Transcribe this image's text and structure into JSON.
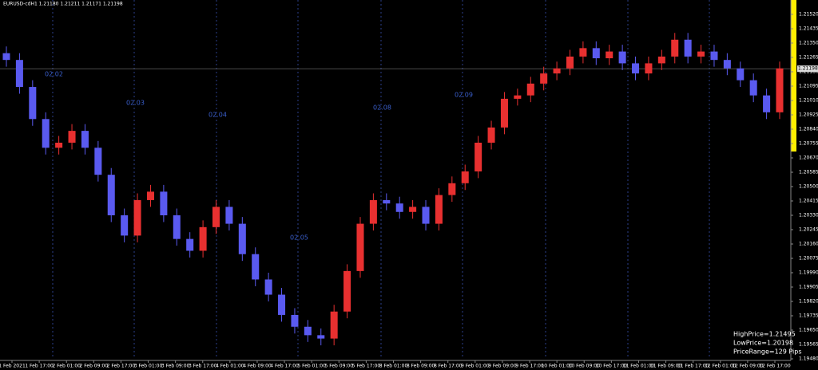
{
  "chart_data": {
    "type": "candlestick",
    "title": "EURUSD-cdH1  1.21180 1.21211 1.21171 1.21198",
    "candles": {
      "open": [
        1.2129,
        1.2125,
        1.2109,
        1.209,
        1.2073,
        1.2076,
        1.2083,
        1.2073,
        1.2057,
        1.2033,
        1.2021,
        1.2042,
        1.2047,
        1.2033,
        1.2019,
        1.2012,
        1.2026,
        1.2038,
        1.2028,
        1.201,
        1.1995,
        1.1986,
        1.1974,
        1.1967,
        1.1962,
        1.196,
        1.1976,
        1.2,
        1.2028,
        1.2042,
        1.204,
        1.2035,
        1.2038,
        1.2028,
        1.2045,
        1.2052,
        1.2059,
        1.2076,
        1.2085,
        1.2102,
        1.2104,
        1.2111,
        1.2117,
        1.212,
        1.2127,
        1.2132,
        1.2126,
        1.213,
        1.2123,
        1.2117,
        1.2123,
        1.2127,
        1.2137,
        1.2127,
        1.213,
        1.2125,
        1.212,
        1.2113,
        1.2104,
        1.2094
      ],
      "high": [
        1.2133,
        1.2129,
        1.2113,
        1.2094,
        1.208,
        1.2087,
        1.2087,
        1.2077,
        1.2061,
        1.2037,
        1.2046,
        1.2051,
        1.2051,
        1.2037,
        1.2023,
        1.203,
        1.2042,
        1.2042,
        1.2032,
        1.2014,
        1.1999,
        1.199,
        1.1978,
        1.1971,
        1.1966,
        1.198,
        1.2004,
        1.2032,
        1.2046,
        1.2046,
        1.2044,
        1.2042,
        1.2042,
        1.2049,
        1.2056,
        1.2063,
        1.208,
        1.2089,
        1.2106,
        1.2108,
        1.2115,
        1.2121,
        1.2124,
        1.2131,
        1.2136,
        1.2136,
        1.2134,
        1.2134,
        1.2127,
        1.2127,
        1.2131,
        1.2141,
        1.2141,
        1.2134,
        1.2134,
        1.2129,
        1.2124,
        1.2117,
        1.2108,
        1.2124
      ],
      "low": [
        1.2121,
        1.2105,
        1.2086,
        1.2069,
        1.2069,
        1.2072,
        1.2069,
        1.2053,
        1.2029,
        1.2017,
        1.2017,
        1.2038,
        1.2029,
        1.2015,
        1.2008,
        1.2008,
        1.2022,
        1.2024,
        1.2006,
        1.1991,
        1.1982,
        1.197,
        1.1963,
        1.1958,
        1.1956,
        1.1956,
        1.1972,
        1.1996,
        1.2024,
        1.2036,
        1.2031,
        1.2031,
        1.2024,
        1.2024,
        1.2041,
        1.2048,
        1.2055,
        1.2072,
        1.2081,
        1.2098,
        1.21,
        1.2107,
        1.2113,
        1.2116,
        1.2123,
        1.2122,
        1.2122,
        1.2119,
        1.2113,
        1.2113,
        1.2119,
        1.2123,
        1.2123,
        1.2123,
        1.2121,
        1.2116,
        1.2109,
        1.21,
        1.209,
        1.209
      ],
      "close": [
        1.2125,
        1.2109,
        1.209,
        1.2073,
        1.2076,
        1.2083,
        1.2073,
        1.2057,
        1.2033,
        1.2021,
        1.2042,
        1.2047,
        1.2033,
        1.2019,
        1.2012,
        1.2026,
        1.2038,
        1.2028,
        1.201,
        1.1995,
        1.1986,
        1.1974,
        1.1967,
        1.1962,
        1.196,
        1.1976,
        1.2,
        1.2028,
        1.2042,
        1.204,
        1.2035,
        1.2038,
        1.2028,
        1.2045,
        1.2052,
        1.2059,
        1.2076,
        1.2085,
        1.2102,
        1.2104,
        1.2111,
        1.2117,
        1.212,
        1.2127,
        1.2132,
        1.2126,
        1.213,
        1.2123,
        1.2117,
        1.2123,
        1.2127,
        1.2137,
        1.2127,
        1.213,
        1.2125,
        1.212,
        1.2113,
        1.2104,
        1.2094,
        1.212
      ]
    },
    "up_color": "#e83030",
    "down_color": "#5a5af0",
    "current_price": 1.21198,
    "ylim": [
      1.1948,
      1.21605
    ],
    "yticks": [
      {
        "value": 1.1948,
        "label": "1.19480"
      },
      1.19565,
      {
        "value": 1.1965,
        "label": "1.19650"
      },
      1.19735,
      {
        "value": 1.1982,
        "label": "1.19820"
      },
      1.19905,
      {
        "value": 1.1999,
        "label": "1.19990"
      },
      1.20075,
      {
        "value": 1.2016,
        "label": "1.20160"
      },
      1.20245,
      {
        "value": 1.2033,
        "label": "1.20330"
      },
      1.20415,
      {
        "value": 1.205,
        "label": "1.20500"
      },
      1.20585,
      {
        "value": 1.2067,
        "label": "1.20670"
      },
      1.20755,
      {
        "value": 1.2084,
        "label": "1.20840"
      },
      1.20925,
      {
        "value": 1.2101,
        "label": "1.21010"
      },
      1.21095,
      {
        "value": 1.2118,
        "label": "1.21180"
      },
      1.21265,
      {
        "value": 1.2135,
        "label": "1.21350"
      },
      1.21435,
      {
        "value": 1.2152,
        "label": "1.21520"
      }
    ],
    "x_labels": [
      "1 Feb 2021",
      "1 Feb 17:00",
      "2 Feb 01:00",
      "2 Feb 09:00",
      "2 Feb 17:00",
      "3 Feb 01:00",
      "3 Feb 09:00",
      "3 Feb 17:00",
      "4 Feb 01:00",
      "4 Feb 09:00",
      "4 Feb 17:00",
      "5 Feb 01:00",
      "5 Feb 09:00",
      "5 Feb 17:00",
      "8 Feb 01:00",
      "8 Feb 09:00",
      "8 Feb 17:00",
      "9 Feb 01:00",
      "9 Feb 09:00",
      "9 Feb 17:00",
      "10 Feb 01:00",
      "10 Feb 09:00",
      "10 Feb 17:00",
      "11 Feb 01:00",
      "11 Feb 09:00",
      "11 Feb 17:00",
      "12 Feb 01:00",
      "12 Feb 09:00",
      "12 Feb 17:00"
    ],
    "separators": [
      "02.02",
      "02.03",
      "02.04",
      "02.05",
      "02.08",
      "02.09"
    ],
    "info": [
      "HighPrice=1.21495",
      "LowPrice=1.20198",
      "PriceRange=129 Pips"
    ]
  }
}
